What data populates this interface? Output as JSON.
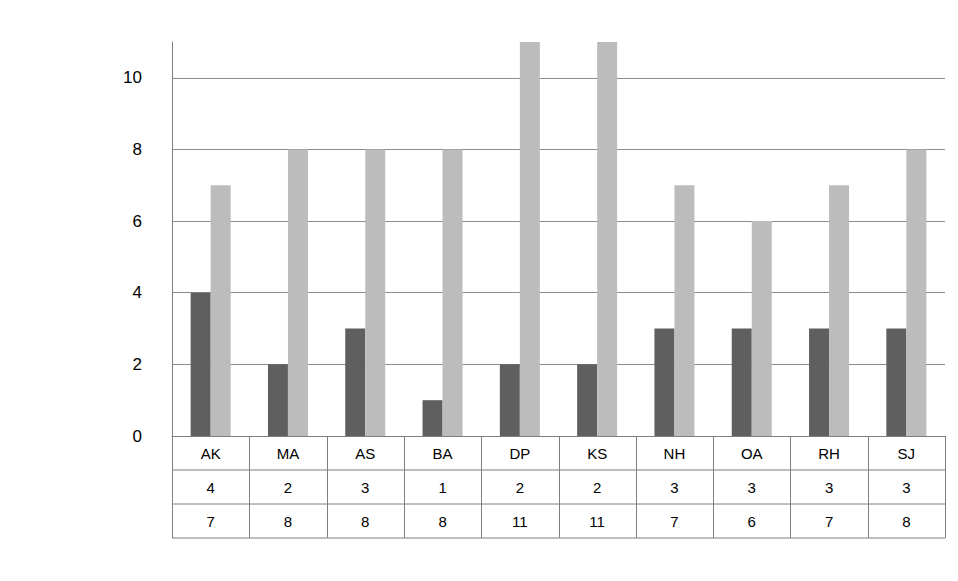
{
  "chart_data": {
    "type": "bar",
    "categories": [
      "AK",
      "MA",
      "AS",
      "BA",
      "DP",
      "KS",
      "NH",
      "OA",
      "RH",
      "SJ"
    ],
    "series": [
      {
        "color": "#5f5f5f",
        "values": [
          4,
          2,
          3,
          1,
          2,
          2,
          3,
          3,
          3,
          3
        ]
      },
      {
        "color": "#bcbcbc",
        "values": [
          7,
          8,
          8,
          8,
          11,
          11,
          7,
          6,
          7,
          8
        ]
      }
    ],
    "ylim": [
      0,
      11
    ],
    "yticks": [
      0,
      2,
      4,
      6,
      8,
      10
    ],
    "grid": true
  }
}
